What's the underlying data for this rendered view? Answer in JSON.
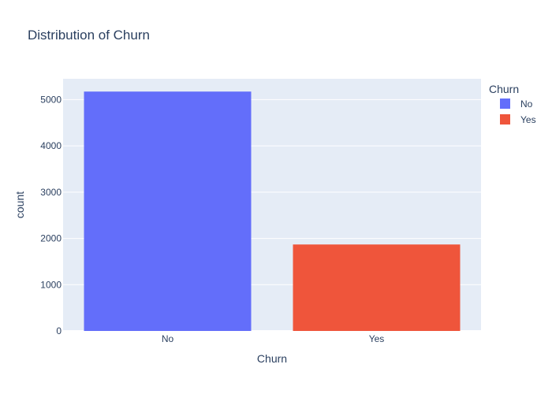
{
  "chart_data": {
    "type": "bar",
    "title": "Distribution of Churn",
    "xlabel": "Churn",
    "ylabel": "count",
    "categories": [
      "No",
      "Yes"
    ],
    "values": [
      5174,
      1869
    ],
    "colors": [
      "#636efa",
      "#ef553b"
    ],
    "ylim": [
      0,
      5450
    ],
    "yticks": [
      0,
      1000,
      2000,
      3000,
      4000,
      5000
    ],
    "grid": true,
    "plot_background": "#e5ecf6",
    "legend": {
      "title": "Churn",
      "placement": "top-right",
      "entries": [
        {
          "name": "No",
          "color": "#636efa"
        },
        {
          "name": "Yes",
          "color": "#ef553b"
        }
      ]
    }
  }
}
